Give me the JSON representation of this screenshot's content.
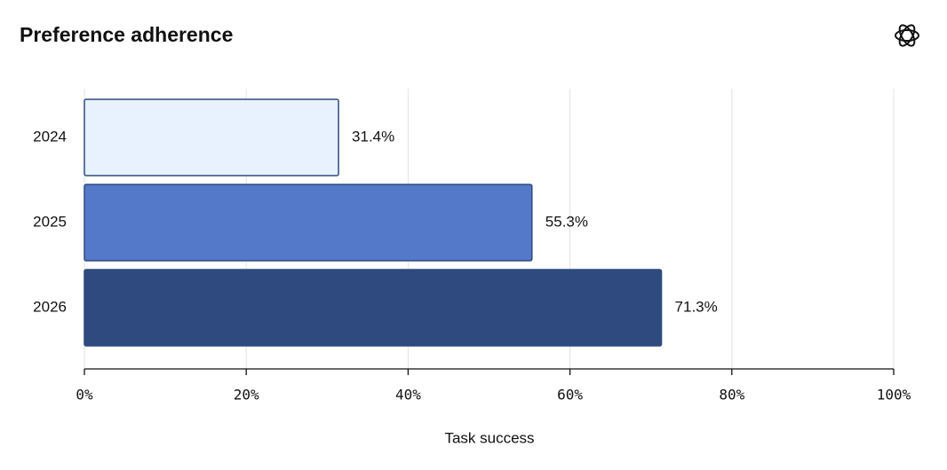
{
  "chart_data": {
    "type": "barh",
    "title": "Preference adherence",
    "xlabel": "Task success",
    "categories": [
      "2024",
      "2025",
      "2026"
    ],
    "values": [
      31.4,
      55.3,
      71.3
    ],
    "value_labels": [
      "31.4%",
      "55.3%",
      "71.3%"
    ],
    "colors": [
      "#e8f2fe",
      "#5479c8",
      "#2f4a7f"
    ],
    "xlim": [
      0,
      100
    ],
    "xticks": [
      {
        "value": 0,
        "label": "0%"
      },
      {
        "value": 20,
        "label": "20%"
      },
      {
        "value": 40,
        "label": "40%"
      },
      {
        "value": 60,
        "label": "60%"
      },
      {
        "value": 80,
        "label": "80%"
      },
      {
        "value": 100,
        "label": "100%"
      }
    ],
    "grid": true
  }
}
